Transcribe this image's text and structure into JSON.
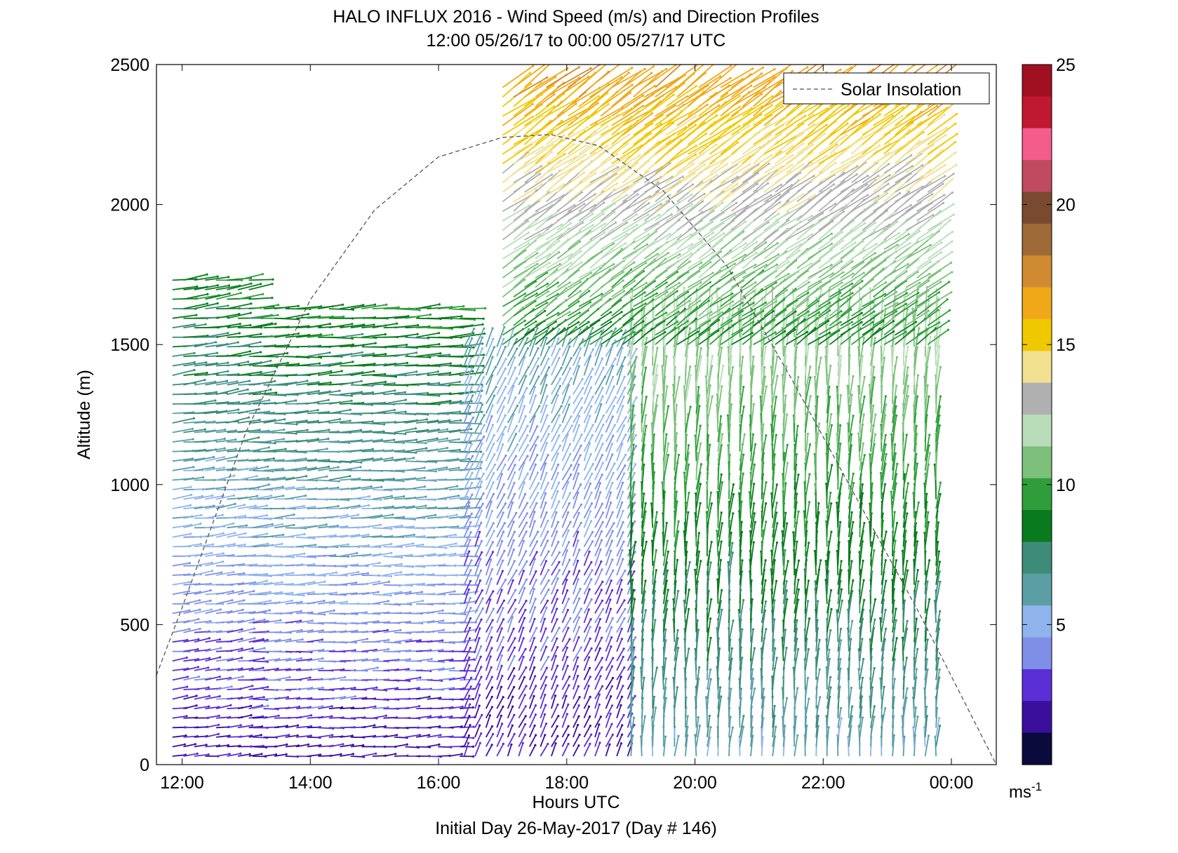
{
  "chart_data": {
    "type": "vector-profile",
    "title": "HALO INFLUX 2016 - Wind Speed (m/s) and Direction Profiles",
    "subtitle": "12:00 05/26/17 to 00:00 05/27/17  UTC",
    "xlabel": "Hours UTC",
    "footer": "Initial Day 26-May-2017 (Day # 146)",
    "ylabel": "Altitude (m)",
    "xlim": [
      11.6,
      24.7
    ],
    "ylim": [
      0,
      2500
    ],
    "x_ticks": [
      12,
      14,
      16,
      18,
      20,
      22,
      24
    ],
    "x_tick_labels": [
      "12:00",
      "14:00",
      "16:00",
      "18:00",
      "20:00",
      "22:00",
      "00:00"
    ],
    "y_ticks": [
      0,
      500,
      1000,
      1500,
      2000,
      2500
    ],
    "y_tick_labels": [
      "0",
      "500",
      "1000",
      "1500",
      "2000",
      "2500"
    ],
    "colorbar": {
      "range": [
        0,
        25
      ],
      "ticks": [
        5,
        10,
        15,
        20,
        25
      ],
      "tick_labels": [
        "5",
        "10",
        "15",
        "20",
        "25"
      ],
      "unit_base": "ms",
      "unit_exp": "-1",
      "colors": [
        "#0a0a3c",
        "#3a0f9c",
        "#5b2fd6",
        "#7f8fe8",
        "#8fb4ec",
        "#5b9ea4",
        "#3d8c7a",
        "#0a7a1e",
        "#2f9e3a",
        "#7cc07c",
        "#b8dcb8",
        "#b0b0b0",
        "#f0e090",
        "#f0c800",
        "#f0a818",
        "#d08a30",
        "#9e6a38",
        "#7a4a30",
        "#c04a60",
        "#f45c8c",
        "#c01830",
        "#a01020"
      ]
    },
    "legend": {
      "position": "top-right",
      "label": "Solar Insolation"
    },
    "solar_insolation": {
      "style": "dashed",
      "peak_time": 17.75,
      "peak_altitude": 2250,
      "points": [
        [
          11.6,
          320
        ],
        [
          12,
          560
        ],
        [
          13,
          1190
        ],
        [
          14,
          1660
        ],
        [
          15,
          1980
        ],
        [
          16,
          2170
        ],
        [
          17,
          2240
        ],
        [
          17.75,
          2250
        ],
        [
          18.5,
          2210
        ],
        [
          19.5,
          2050
        ],
        [
          20.5,
          1780
        ],
        [
          21.5,
          1380
        ],
        [
          22.5,
          960
        ],
        [
          23.5,
          540
        ],
        [
          24.7,
          0
        ]
      ]
    },
    "series": [
      {
        "time_range": [
          11.85,
          13.1
        ],
        "alt_range": [
          30,
          1760
        ],
        "speed_range": [
          2,
          9
        ],
        "direction": "westerly-northwesterly"
      },
      {
        "time_range": [
          13.1,
          16.4
        ],
        "alt_range": [
          30,
          1640
        ],
        "speed_range": [
          2,
          9
        ],
        "direction": "westerly"
      },
      {
        "time_range": [
          16.4,
          19.0
        ],
        "alt_range": [
          30,
          1500
        ],
        "speed_range": [
          2,
          6
        ],
        "direction": "southerly-southwesterly"
      },
      {
        "time_range": [
          19.0,
          23.8
        ],
        "alt_range": [
          30,
          1600
        ],
        "speed_range": [
          6,
          12
        ],
        "direction": "southerly"
      },
      {
        "time_range": [
          17.0,
          23.8
        ],
        "alt_range": [
          1500,
          2450
        ],
        "speed_range": [
          9,
          17
        ],
        "direction": "southwesterly"
      }
    ]
  }
}
